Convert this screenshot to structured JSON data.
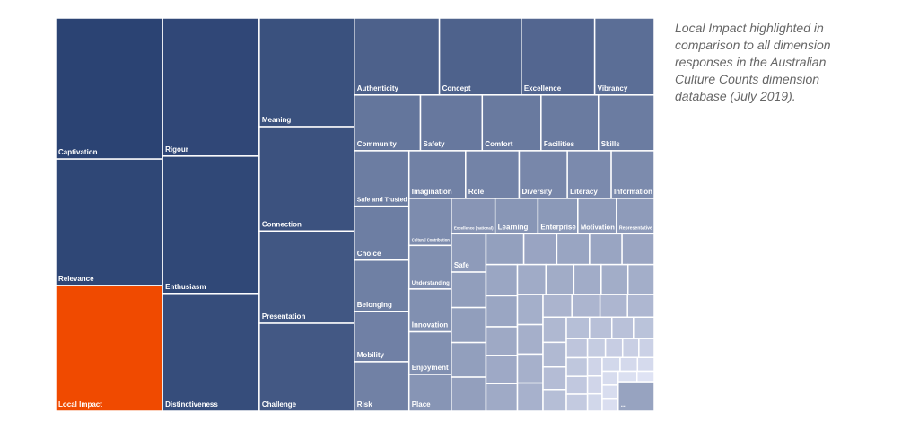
{
  "chart_data": {
    "type": "treemap",
    "caption": [
      "Local Impact highlighted in",
      "comparison to all dimension",
      "responses in the Australian",
      "Culture Counts dimension",
      "database (July 2019)."
    ],
    "categories": [
      "Captivation",
      "Relevance",
      "Local Impact",
      "Rigour",
      "Enthusiasm",
      "Distinctiveness",
      "Meaning",
      "Connection",
      "Presentation",
      "Challenge",
      "Authenticity",
      "Concept",
      "Excellence",
      "Vibrancy",
      "Community",
      "Safety",
      "Comfort",
      "Facilities",
      "Skills",
      "Safe and Trusted",
      "Choice",
      "Belonging",
      "Mobility",
      "Risk",
      "Imagination",
      "Role",
      "Diversity",
      "Literacy",
      "Information",
      "Cultural Contribution",
      "Understanding",
      "Innovation",
      "Enjoyment",
      "Place",
      "Excellence (national)",
      "Learning",
      "Enterprise",
      "Motivation",
      "Representative",
      "Safe",
      null,
      null,
      null,
      null,
      null,
      null,
      null,
      null,
      null,
      null,
      null,
      null,
      null,
      null,
      null,
      null,
      null,
      null,
      null,
      null,
      null,
      null,
      null,
      null,
      null,
      null,
      null,
      null,
      null,
      null,
      null,
      null,
      null,
      null,
      null,
      null,
      null,
      null,
      null,
      null,
      null,
      null,
      null,
      null,
      null,
      null,
      null,
      null,
      null,
      null,
      null,
      null,
      null,
      null,
      "..."
    ],
    "values": [
      18400,
      16500,
      16400,
      16300,
      16200,
      13900,
      12600,
      12100,
      10700,
      10200,
      8000,
      7700,
      6900,
      5600,
      4500,
      4200,
      4000,
      3900,
      3800,
      3700,
      3600,
      3420,
      3360,
      3300,
      3290,
      3110,
      2800,
      2550,
      2500,
      2430,
      2250,
      2210,
      2200,
      1900,
      1890,
      1850,
      1720,
      1670,
      1630,
      1620,
      1500,
      1480,
      1460,
      1440,
      1420,
      1240,
      1230,
      1220,
      1210,
      1200,
      1190,
      1100,
      1080,
      1060,
      1040,
      1020,
      1000,
      980,
      960,
      940,
      920,
      900,
      880,
      800,
      780,
      760,
      740,
      720,
      700,
      640,
      620,
      600,
      580,
      560,
      540,
      500,
      480,
      460,
      440,
      420,
      400,
      380,
      360,
      330,
      320,
      310,
      300,
      290,
      280,
      270,
      260,
      250,
      240,
      220,
      1300
    ],
    "color_large": "#2b4373",
    "color_small": "#dfe3f4",
    "highlight": 2,
    "highlight_color": "#f04a00"
  }
}
